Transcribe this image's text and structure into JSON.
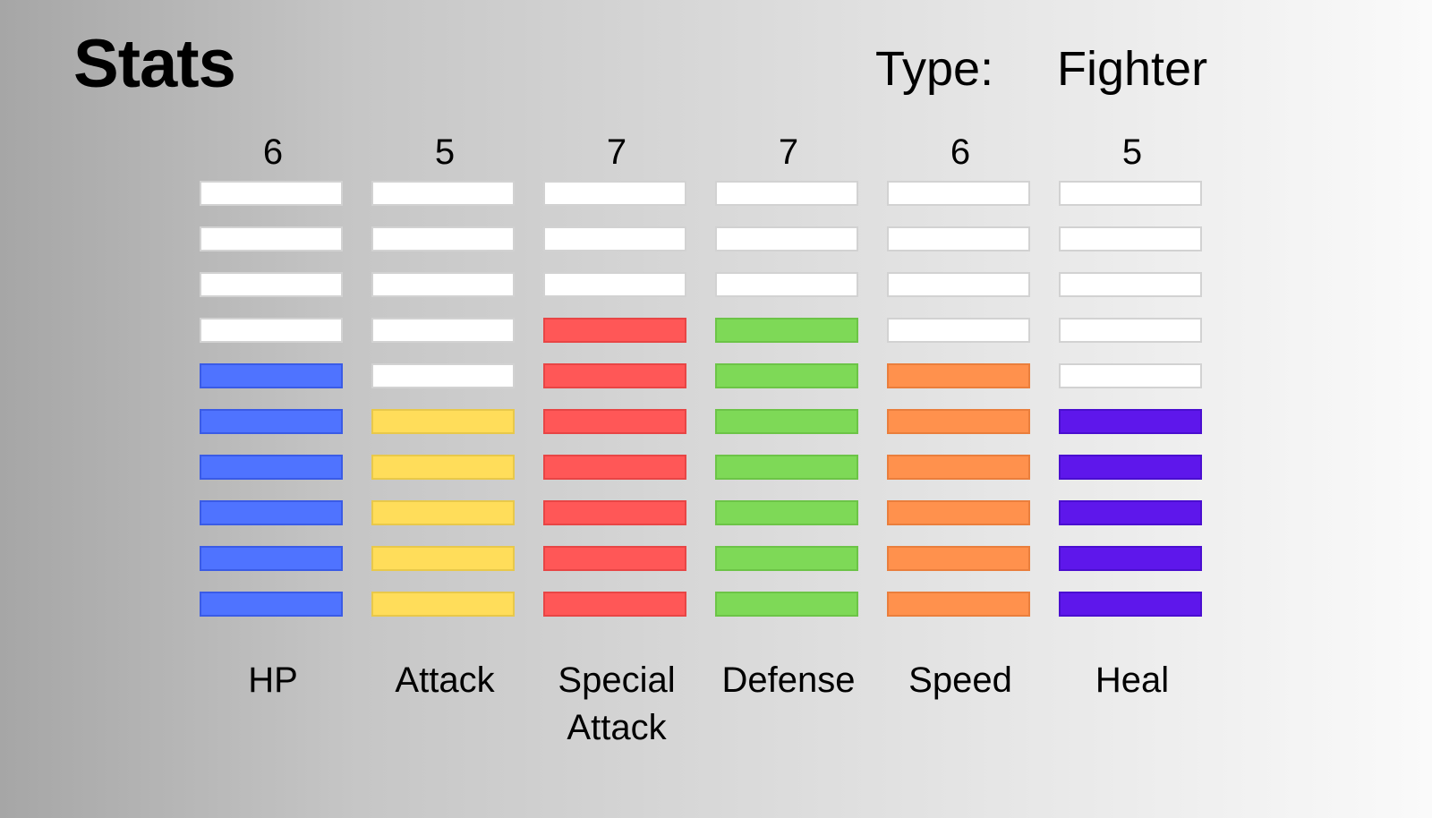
{
  "header": {
    "title": "Stats",
    "type_label": "Type:",
    "type_value": "Fighter"
  },
  "max_points": 10,
  "stats": [
    {
      "name": "HP",
      "value": "6",
      "points": 6,
      "color": "#4f73ff",
      "border": "#3a5be6"
    },
    {
      "name": "Attack",
      "value": "5",
      "points": 5,
      "color": "#ffdd5a",
      "border": "#e8c84a"
    },
    {
      "name": "Special Attack",
      "value": "7",
      "points": 7,
      "color": "#ff5757",
      "border": "#e84545"
    },
    {
      "name": "Defense",
      "value": "7",
      "points": 7,
      "color": "#7ed957",
      "border": "#6cc447"
    },
    {
      "name": "Speed",
      "value": "6",
      "points": 6,
      "color": "#ff914d",
      "border": "#ea7e3c"
    },
    {
      "name": "Heal",
      "value": "5",
      "points": 5,
      "color": "#5e17eb",
      "border": "#4a0ed0"
    }
  ],
  "empty_color": "#ffffff"
}
